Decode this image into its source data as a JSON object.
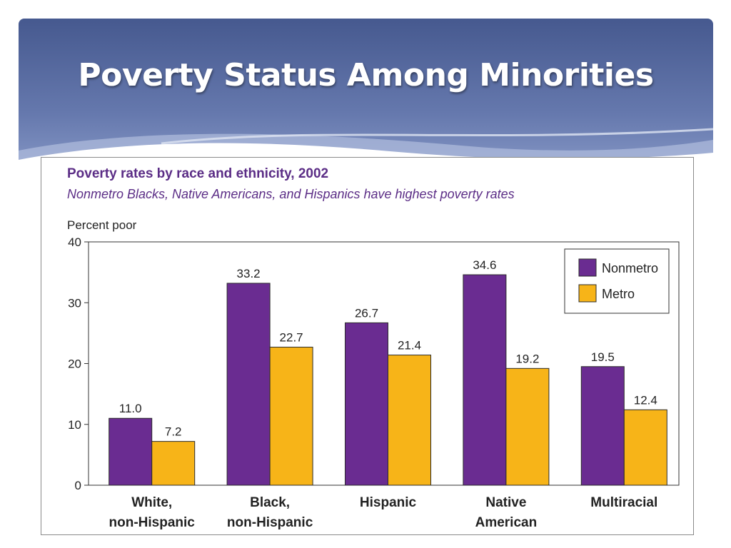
{
  "slide": {
    "title": "Poverty Status Among Minorities"
  },
  "colors": {
    "banner_dark": "#46598f",
    "banner_light": "#8f9fcb",
    "nonmetro": "#6a2c91",
    "metro": "#f7b418",
    "chart_title": "#5b2d86"
  },
  "chart_data": {
    "type": "bar",
    "title": "Poverty rates by race and ethnicity, 2002",
    "subtitle": "Nonmetro Blacks, Native Americans, and Hispanics have highest poverty rates",
    "ylabel": "Percent poor",
    "xlabel": "",
    "ylim": [
      0,
      40
    ],
    "yticks": [
      0,
      10,
      20,
      30,
      40
    ],
    "grid": false,
    "legend_position": "top-right",
    "categories": [
      [
        "White,",
        "non-Hispanic"
      ],
      [
        "Black,",
        "non-Hispanic"
      ],
      [
        "Hispanic"
      ],
      [
        "Native",
        "American"
      ],
      [
        "Multiracial"
      ]
    ],
    "series": [
      {
        "name": "Nonmetro",
        "color": "#6a2c91",
        "values": [
          11.0,
          33.2,
          26.7,
          34.6,
          19.5
        ],
        "labels": [
          "11.0",
          "33.2",
          "26.7",
          "34.6",
          "19.5"
        ]
      },
      {
        "name": "Metro",
        "color": "#f7b418",
        "values": [
          7.2,
          22.7,
          21.4,
          19.2,
          12.4
        ],
        "labels": [
          "7.2",
          "22.7",
          "21.4",
          "19.2",
          "12.4"
        ]
      }
    ]
  }
}
